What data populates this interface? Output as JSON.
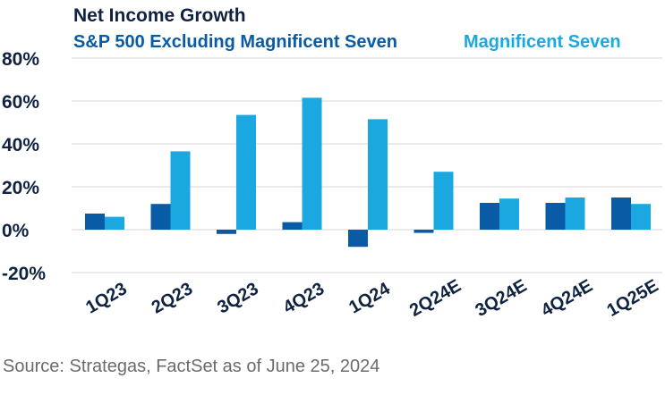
{
  "chart_data": {
    "type": "bar",
    "title": "Net Income Growth",
    "categories": [
      "1Q23",
      "2Q23",
      "3Q23",
      "4Q23",
      "1Q24",
      "2Q24E",
      "3Q24E",
      "4Q24E",
      "1Q25E"
    ],
    "series": [
      {
        "name": "S&P 500 Excluding Magnificent Seven",
        "color": "#0a5ba5",
        "values": [
          7.5,
          12,
          -2,
          3.5,
          -8,
          -1.5,
          12.5,
          12.5,
          15
        ]
      },
      {
        "name": "Magnificent Seven",
        "color": "#1ba8e0",
        "values": [
          6,
          36.5,
          53.5,
          61.5,
          51.5,
          27,
          14.5,
          15,
          12
        ]
      }
    ],
    "yticks": [
      "80%",
      "60%",
      "40%",
      "20%",
      "0%",
      "-20%"
    ],
    "ylim": [
      -20,
      80
    ],
    "grid": true,
    "legend_position": "top"
  },
  "source": "Source: Strategas, FactSet as of June 25, 2024"
}
